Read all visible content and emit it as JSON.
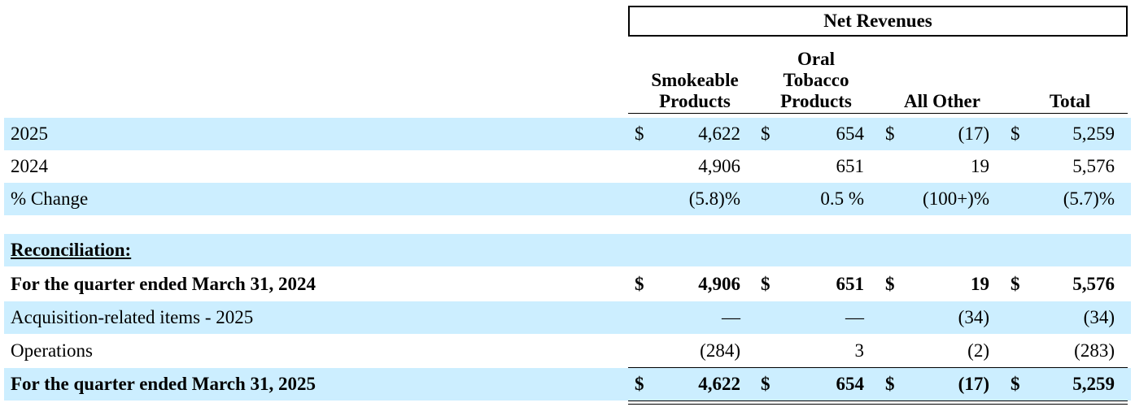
{
  "header": {
    "group_title": "Net Revenues",
    "col1": [
      "Smokeable",
      "Products"
    ],
    "col2": [
      "Oral",
      "Tobacco",
      "Products"
    ],
    "col3": [
      "All Other"
    ],
    "col4": [
      "Total"
    ]
  },
  "rows": [
    {
      "label": "2025",
      "bold": false,
      "dollar": "$",
      "c1": "4,622",
      "c2": "654",
      "c3": "(17)",
      "c4": "5,259"
    },
    {
      "label": "2024",
      "bold": false,
      "dollar": "",
      "c1": "4,906",
      "c2": "651",
      "c3": "19",
      "c4": "5,576"
    },
    {
      "label": "% Change",
      "bold": false,
      "dollar": "",
      "c1": "(5.8)%",
      "c2": "0.5 %",
      "c3": "(100+)%",
      "c4": "(5.7)%"
    },
    {
      "label": "Reconciliation:",
      "bold": true,
      "dollar": "",
      "c1": "",
      "c2": "",
      "c3": "",
      "c4": ""
    },
    {
      "label": "For the quarter ended March 31, 2024",
      "bold": true,
      "dollar": "$",
      "c1": "4,906",
      "c2": "651",
      "c3": "19",
      "c4": "5,576"
    },
    {
      "label": "Acquisition-related items - 2025",
      "bold": false,
      "dollar": "",
      "c1": "—",
      "c2": "—",
      "c3": "(34)",
      "c4": "(34)"
    },
    {
      "label": "Operations",
      "bold": false,
      "dollar": "",
      "c1": "(284)",
      "c2": "3",
      "c3": "(2)",
      "c4": "(283)"
    },
    {
      "label": "For the quarter ended March 31, 2025",
      "bold": true,
      "dollar": "$",
      "c1": "4,622",
      "c2": "654",
      "c3": "(17)",
      "c4": "5,259"
    }
  ]
}
